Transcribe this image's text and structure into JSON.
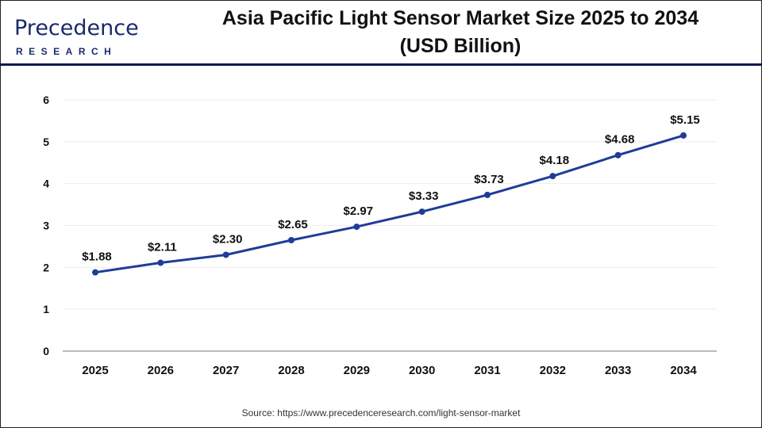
{
  "logo": {
    "main": "Precedence",
    "sub": "RESEARCH"
  },
  "title_line1": "Asia Pacific Light Sensor Market Size 2025 to 2034",
  "title_line2": "(USD Billion)",
  "source": "Source: https://www.precedenceresearch.com/light-sensor-market",
  "chart_data": {
    "type": "line",
    "title": "Asia Pacific Light Sensor Market Size 2025 to 2034 (USD Billion)",
    "categories": [
      "2025",
      "2026",
      "2027",
      "2028",
      "2029",
      "2030",
      "2031",
      "2032",
      "2033",
      "2034"
    ],
    "values": [
      1.88,
      2.11,
      2.3,
      2.65,
      2.97,
      3.33,
      3.73,
      4.18,
      4.68,
      5.15
    ],
    "data_labels": [
      "$1.88",
      "$2.11",
      "$2.30",
      "$2.65",
      "$2.97",
      "$3.33",
      "$3.73",
      "$4.18",
      "$4.68",
      "$5.15"
    ],
    "ylim": [
      0,
      6
    ],
    "yticks": [
      0,
      1,
      2,
      3,
      4,
      5,
      6
    ],
    "grid": true,
    "line_color": "#1f3c99",
    "xlabel": "",
    "ylabel": ""
  }
}
